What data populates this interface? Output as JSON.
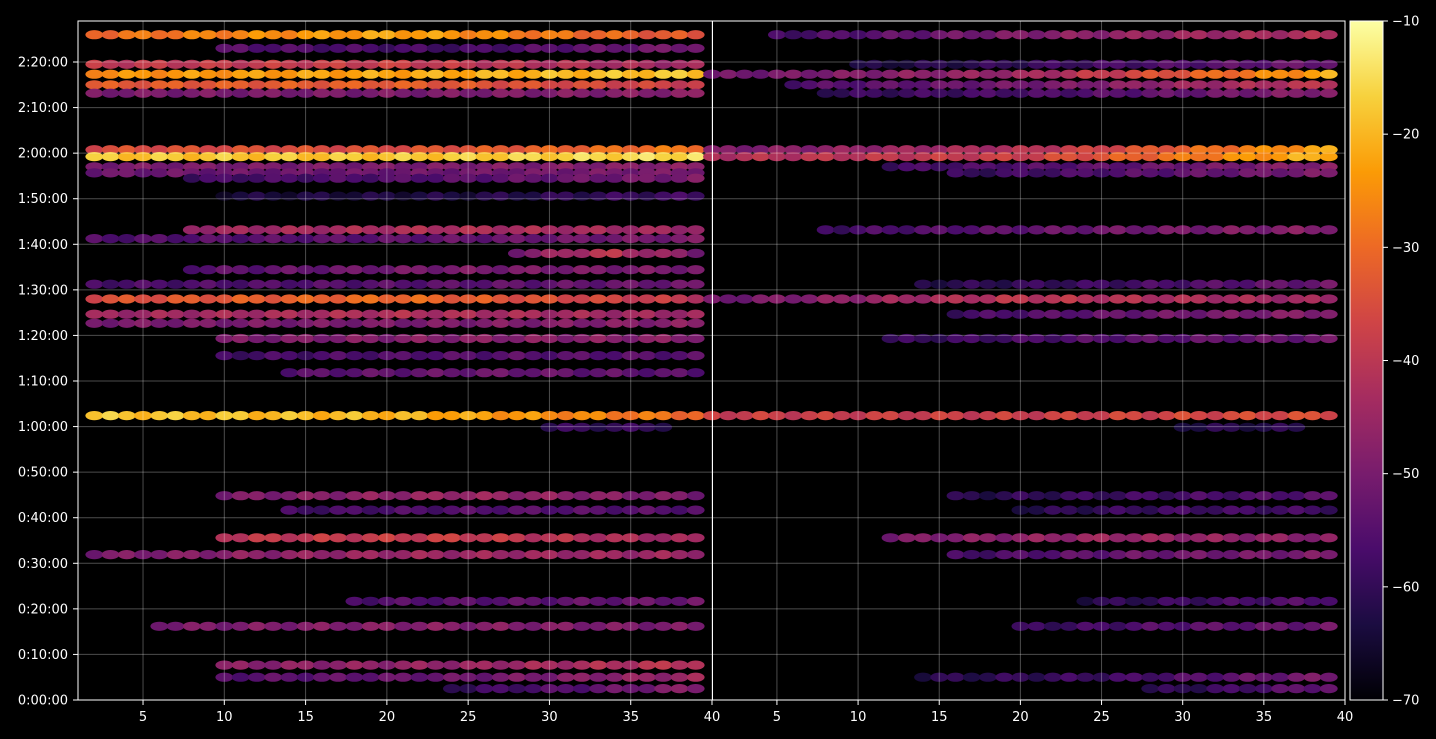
{
  "chart_data": {
    "type": "heatmap",
    "title": "",
    "xlabel": "",
    "ylabel": "",
    "grid": true,
    "background": "#000000",
    "colormap": "inferno",
    "colormap_stops": [
      "#000004",
      "#1b0c41",
      "#4a0c6b",
      "#781c6d",
      "#a52c60",
      "#cf4446",
      "#ed6925",
      "#fb9b06",
      "#f7d13d",
      "#fcffa4"
    ],
    "panels": [
      {
        "name": "left",
        "xlim": [
          1,
          40
        ],
        "xticks": [
          5,
          10,
          15,
          20,
          25,
          30,
          35,
          40
        ],
        "xtick_labels": [
          "5",
          "10",
          "15",
          "20",
          "25",
          "30",
          "35",
          "40"
        ]
      },
      {
        "name": "right",
        "xlim": [
          1,
          40
        ],
        "xticks": [
          5,
          10,
          15,
          20,
          25,
          30,
          35,
          40
        ],
        "xtick_labels": [
          "5",
          "10",
          "15",
          "20",
          "25",
          "30",
          "35",
          "40"
        ]
      }
    ],
    "ylim_seconds": [
      0,
      8940
    ],
    "yticks_seconds": [
      0,
      600,
      1200,
      1800,
      2400,
      3000,
      3600,
      4200,
      4800,
      5400,
      6000,
      6600,
      7200,
      7800,
      8400
    ],
    "ytick_labels": [
      "0:00:00",
      "0:10:00",
      "0:20:00",
      "0:30:00",
      "0:40:00",
      "0:50:00",
      "1:00:00",
      "1:10:00",
      "1:20:00",
      "1:30:00",
      "1:40:00",
      "1:50:00",
      "2:00:00",
      "2:10:00",
      "2:20:00"
    ],
    "colorbar": {
      "vmin": -70,
      "vmax": -10,
      "ticks": [
        -70,
        -60,
        -50,
        -40,
        -30,
        -20,
        -10
      ],
      "tick_labels": [
        "−70",
        "−60",
        "−50",
        "−40",
        "−30",
        "−20",
        "−10"
      ]
    },
    "bands_left": [
      {
        "t": 8760,
        "x0": 2,
        "x1": 39,
        "v": [
          -30,
          -22,
          -34
        ]
      },
      {
        "t": 8580,
        "x0": 10,
        "x1": 39,
        "v": [
          -55,
          -58,
          -50
        ]
      },
      {
        "t": 8370,
        "x0": 2,
        "x1": 39,
        "v": [
          -40,
          -38,
          -45
        ]
      },
      {
        "t": 8240,
        "x0": 2,
        "x1": 39,
        "v": [
          -25,
          -22,
          -18
        ]
      },
      {
        "t": 8100,
        "x0": 2,
        "x1": 39,
        "v": [
          -33,
          -32,
          -38
        ]
      },
      {
        "t": 7990,
        "x0": 2,
        "x1": 39,
        "v": [
          -50,
          -50,
          -48
        ]
      },
      {
        "t": 7245,
        "x0": 2,
        "x1": 39,
        "v": [
          -35,
          -35,
          -28
        ]
      },
      {
        "t": 7155,
        "x0": 2,
        "x1": 39,
        "v": [
          -18,
          -18,
          -15
        ]
      },
      {
        "t": 7020,
        "x0": 2,
        "x1": 39,
        "v": [
          -50,
          -50,
          -48
        ]
      },
      {
        "t": 6940,
        "x0": 2,
        "x1": 39,
        "v": [
          -52,
          -52,
          -50
        ]
      },
      {
        "t": 6870,
        "x0": 8,
        "x1": 39,
        "v": [
          -58,
          -55,
          -50
        ]
      },
      {
        "t": 6635,
        "x0": 10,
        "x1": 39,
        "v": [
          -64,
          -63,
          -58
        ]
      },
      {
        "t": 6190,
        "x0": 8,
        "x1": 39,
        "v": [
          -45,
          -42,
          -45
        ]
      },
      {
        "t": 6075,
        "x0": 2,
        "x1": 39,
        "v": [
          -56,
          -54,
          -50
        ]
      },
      {
        "t": 5880,
        "x0": 28,
        "x1": 39,
        "v": [
          -50,
          -40,
          -50
        ]
      },
      {
        "t": 5665,
        "x0": 8,
        "x1": 39,
        "v": [
          -55,
          -50,
          -50
        ]
      },
      {
        "t": 5475,
        "x0": 2,
        "x1": 39,
        "v": [
          -57,
          -55,
          -52
        ]
      },
      {
        "t": 5280,
        "x0": 2,
        "x1": 39,
        "v": [
          -35,
          -30,
          -40
        ]
      },
      {
        "t": 5080,
        "x0": 2,
        "x1": 39,
        "v": [
          -45,
          -42,
          -45
        ]
      },
      {
        "t": 4960,
        "x0": 2,
        "x1": 39,
        "v": [
          -50,
          -50,
          -48
        ]
      },
      {
        "t": 4760,
        "x0": 10,
        "x1": 39,
        "v": [
          -50,
          -48,
          -48
        ]
      },
      {
        "t": 4535,
        "x0": 10,
        "x1": 39,
        "v": [
          -58,
          -55,
          -55
        ]
      },
      {
        "t": 4310,
        "x0": 14,
        "x1": 39,
        "v": [
          -55,
          -52,
          -55
        ]
      },
      {
        "t": 3745,
        "x0": 2,
        "x1": 39,
        "v": [
          -18,
          -20,
          -30
        ]
      },
      {
        "t": 3590,
        "x0": 30,
        "x1": 37,
        "v": [
          -60,
          -60,
          -60
        ]
      },
      {
        "t": 2690,
        "x0": 10,
        "x1": 39,
        "v": [
          -50,
          -45,
          -50
        ]
      },
      {
        "t": 2500,
        "x0": 14,
        "x1": 39,
        "v": [
          -58,
          -55,
          -55
        ]
      },
      {
        "t": 2135,
        "x0": 10,
        "x1": 39,
        "v": [
          -40,
          -38,
          -45
        ]
      },
      {
        "t": 1915,
        "x0": 2,
        "x1": 39,
        "v": [
          -50,
          -45,
          -45
        ]
      },
      {
        "t": 1300,
        "x0": 18,
        "x1": 39,
        "v": [
          -56,
          -54,
          -52
        ]
      },
      {
        "t": 970,
        "x0": 6,
        "x1": 39,
        "v": [
          -50,
          -48,
          -50
        ]
      },
      {
        "t": 460,
        "x0": 10,
        "x1": 39,
        "v": [
          -48,
          -46,
          -40
        ]
      },
      {
        "t": 300,
        "x0": 10,
        "x1": 39,
        "v": [
          -55,
          -52,
          -45
        ]
      },
      {
        "t": 150,
        "x0": 24,
        "x1": 39,
        "v": [
          -60,
          -55,
          -48
        ]
      }
    ],
    "bands_right": [
      {
        "t": 8760,
        "x0": 5,
        "x1": 39,
        "v": [
          -58,
          -48,
          -42
        ]
      },
      {
        "t": 8370,
        "x0": 10,
        "x1": 39,
        "v": [
          -64,
          -58,
          -52
        ]
      },
      {
        "t": 8240,
        "x0": 1,
        "x1": 39,
        "v": [
          -52,
          -45,
          -22
        ]
      },
      {
        "t": 8100,
        "x0": 6,
        "x1": 39,
        "v": [
          -56,
          -50,
          -40
        ]
      },
      {
        "t": 7990,
        "x0": 8,
        "x1": 39,
        "v": [
          -60,
          -56,
          -48
        ]
      },
      {
        "t": 7245,
        "x0": 1,
        "x1": 39,
        "v": [
          -50,
          -42,
          -22
        ]
      },
      {
        "t": 7155,
        "x0": 1,
        "x1": 39,
        "v": [
          -42,
          -38,
          -20
        ]
      },
      {
        "t": 7020,
        "x0": 12,
        "x1": 39,
        "v": [
          -58,
          -54,
          -48
        ]
      },
      {
        "t": 6940,
        "x0": 16,
        "x1": 39,
        "v": [
          -60,
          -55,
          -50
        ]
      },
      {
        "t": 6190,
        "x0": 8,
        "x1": 39,
        "v": [
          -58,
          -52,
          -48
        ]
      },
      {
        "t": 5475,
        "x0": 14,
        "x1": 39,
        "v": [
          -62,
          -58,
          -52
        ]
      },
      {
        "t": 5280,
        "x0": 1,
        "x1": 39,
        "v": [
          -52,
          -40,
          -45
        ]
      },
      {
        "t": 5080,
        "x0": 16,
        "x1": 39,
        "v": [
          -58,
          -52,
          -48
        ]
      },
      {
        "t": 4760,
        "x0": 12,
        "x1": 39,
        "v": [
          -60,
          -55,
          -52
        ]
      },
      {
        "t": 3745,
        "x0": 1,
        "x1": 39,
        "v": [
          -38,
          -38,
          -35
        ]
      },
      {
        "t": 3590,
        "x0": 30,
        "x1": 37,
        "v": [
          -62,
          -62,
          -62
        ]
      },
      {
        "t": 2690,
        "x0": 16,
        "x1": 39,
        "v": [
          -62,
          -58,
          -55
        ]
      },
      {
        "t": 2500,
        "x0": 20,
        "x1": 39,
        "v": [
          -62,
          -58,
          -58
        ]
      },
      {
        "t": 2135,
        "x0": 12,
        "x1": 39,
        "v": [
          -50,
          -45,
          -48
        ]
      },
      {
        "t": 1915,
        "x0": 16,
        "x1": 39,
        "v": [
          -58,
          -52,
          -50
        ]
      },
      {
        "t": 1300,
        "x0": 24,
        "x1": 39,
        "v": [
          -62,
          -58,
          -55
        ]
      },
      {
        "t": 970,
        "x0": 20,
        "x1": 39,
        "v": [
          -60,
          -55,
          -52
        ]
      },
      {
        "t": 300,
        "x0": 14,
        "x1": 39,
        "v": [
          -62,
          -58,
          -50
        ]
      },
      {
        "t": 150,
        "x0": 28,
        "x1": 39,
        "v": [
          -62,
          -58,
          -52
        ]
      }
    ]
  }
}
